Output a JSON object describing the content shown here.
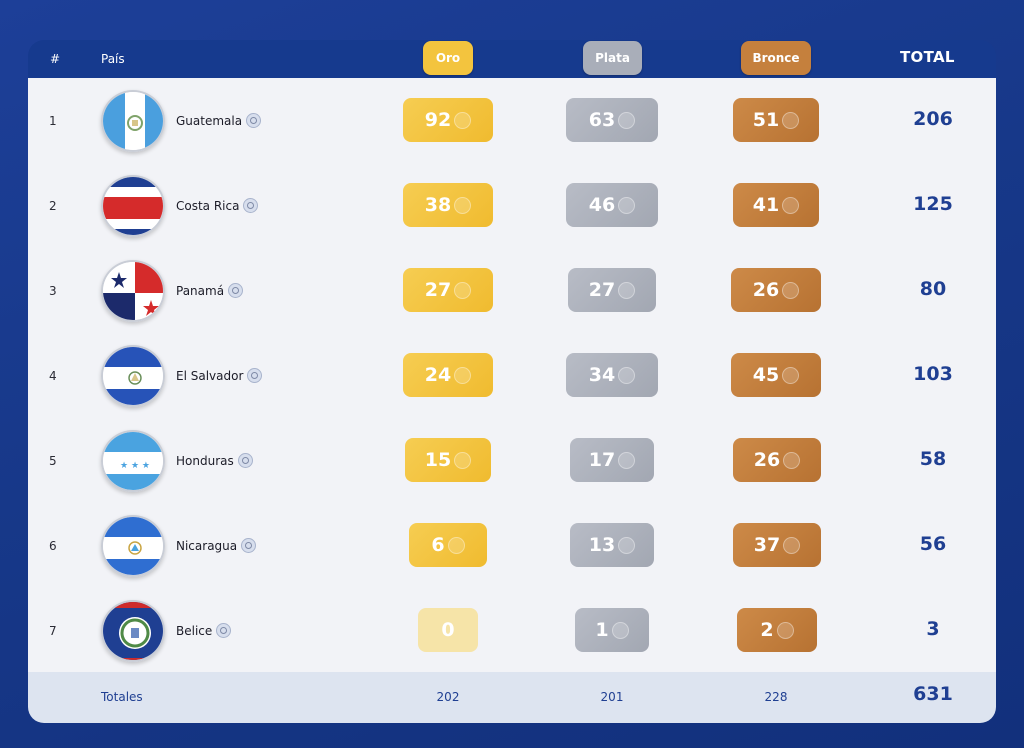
{
  "header": {
    "rank": "#",
    "country": "País",
    "gold": "Oro",
    "silver": "Plata",
    "bronze": "Bronce",
    "total": "TOTAL"
  },
  "rows": [
    {
      "rank": "1",
      "country": "Guatemala",
      "gold": "92",
      "silver": "63",
      "bronze": "51",
      "total": "206",
      "flag": "guatemala"
    },
    {
      "rank": "2",
      "country": "Costa Rica",
      "gold": "38",
      "silver": "46",
      "bronze": "41",
      "total": "125",
      "flag": "costa-rica"
    },
    {
      "rank": "3",
      "country": "Panamá",
      "gold": "27",
      "silver": "27",
      "bronze": "26",
      "total": "80",
      "flag": "panama"
    },
    {
      "rank": "4",
      "country": "El Salvador",
      "gold": "24",
      "silver": "34",
      "bronze": "45",
      "total": "103",
      "flag": "el-salvador"
    },
    {
      "rank": "5",
      "country": "Honduras",
      "gold": "15",
      "silver": "17",
      "bronze": "26",
      "total": "58",
      "flag": "honduras"
    },
    {
      "rank": "6",
      "country": "Nicaragua",
      "gold": "6",
      "silver": "13",
      "bronze": "37",
      "total": "56",
      "flag": "nicaragua"
    },
    {
      "rank": "7",
      "country": "Belice",
      "gold": "0",
      "silver": "1",
      "bronze": "2",
      "total": "3",
      "flag": "belize"
    }
  ],
  "totals": {
    "label": "Totales",
    "gold": "202",
    "silver": "201",
    "bronze": "228",
    "total": "631"
  },
  "icons": {
    "search": "magnifier-icon"
  },
  "colors": {
    "background": "#173889",
    "gold": "#f3c43e",
    "silver": "#a9aeb9",
    "bronze": "#c5803d",
    "total_text": "#1f3f92"
  }
}
